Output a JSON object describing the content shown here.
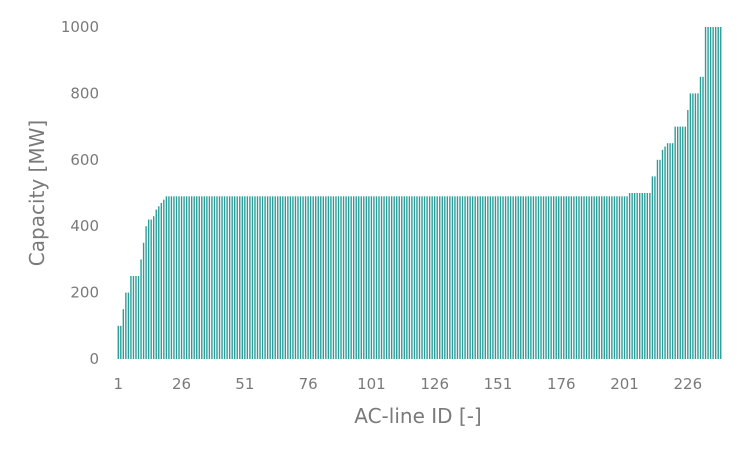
{
  "chart_data": {
    "type": "bar",
    "title": "",
    "xlabel": "AC-line ID [-]",
    "ylabel": "Capacity [MW]",
    "xlim": [
      1,
      239
    ],
    "ylim": [
      0,
      1000
    ],
    "x_ticks": [
      1,
      26,
      51,
      76,
      101,
      126,
      151,
      176,
      201,
      226
    ],
    "y_ticks": [
      0,
      200,
      400,
      600,
      800,
      1000
    ],
    "grid": false,
    "legend": false,
    "bar_color": "#2a9d99",
    "series": [
      {
        "values": [
          100,
          100,
          150,
          200,
          200,
          250,
          250,
          250,
          250,
          300,
          350,
          400,
          420,
          420,
          430,
          450,
          460,
          470,
          480,
          490,
          490,
          490,
          490,
          490,
          490,
          490,
          490,
          490,
          490,
          490,
          490,
          490,
          490,
          490,
          490,
          490,
          490,
          490,
          490,
          490,
          490,
          490,
          490,
          490,
          490,
          490,
          490,
          490,
          490,
          490,
          490,
          490,
          490,
          490,
          490,
          490,
          490,
          490,
          490,
          490,
          490,
          490,
          490,
          490,
          490,
          490,
          490,
          490,
          490,
          490,
          490,
          490,
          490,
          490,
          490,
          490,
          490,
          490,
          490,
          490,
          490,
          490,
          490,
          490,
          490,
          490,
          490,
          490,
          490,
          490,
          490,
          490,
          490,
          490,
          490,
          490,
          490,
          490,
          490,
          490,
          490,
          490,
          490,
          490,
          490,
          490,
          490,
          490,
          490,
          490,
          490,
          490,
          490,
          490,
          490,
          490,
          490,
          490,
          490,
          490,
          490,
          490,
          490,
          490,
          490,
          490,
          490,
          490,
          490,
          490,
          490,
          490,
          490,
          490,
          490,
          490,
          490,
          490,
          490,
          490,
          490,
          490,
          490,
          490,
          490,
          490,
          490,
          490,
          490,
          490,
          490,
          490,
          490,
          490,
          490,
          490,
          490,
          490,
          490,
          490,
          490,
          490,
          490,
          490,
          490,
          490,
          490,
          490,
          490,
          490,
          490,
          490,
          490,
          490,
          490,
          490,
          490,
          490,
          490,
          490,
          490,
          490,
          490,
          490,
          490,
          490,
          490,
          490,
          490,
          490,
          490,
          490,
          490,
          490,
          490,
          490,
          490,
          490,
          490,
          490,
          490,
          490,
          500,
          500,
          500,
          500,
          500,
          500,
          500,
          500,
          500,
          550,
          550,
          600,
          600,
          630,
          640,
          650,
          650,
          650,
          700,
          700,
          700,
          700,
          700,
          750,
          800,
          800,
          800,
          800,
          850,
          850,
          1000,
          1000,
          1000,
          1000,
          1000,
          1000,
          1000
        ]
      }
    ]
  }
}
